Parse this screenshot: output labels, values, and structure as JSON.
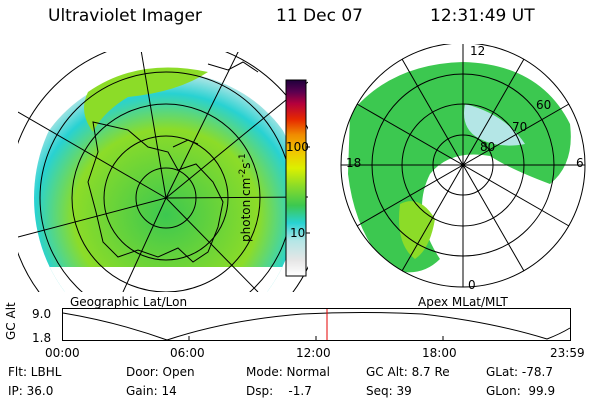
{
  "header": {
    "instrument": "Ultraviolet Imager",
    "date": "11 Dec 07",
    "time": "12:31:49 UT"
  },
  "colorbar": {
    "unit_label": "photon cm",
    "unit_exp1": "-2",
    "unit_s": "s",
    "unit_exp2": "-1",
    "ticks": [
      "100",
      "10"
    ],
    "stops": [
      "#ffffff",
      "#e6e6e6",
      "#b4e6e6",
      "#28d2d2",
      "#3cc850",
      "#8cdc28",
      "#dcf000",
      "#f0c800",
      "#f08c00",
      "#e62800",
      "#b4003c",
      "#5a0050",
      "#1e003c"
    ]
  },
  "geo_panel": {
    "caption": "Geographic Lat/Lon"
  },
  "apex_panel": {
    "caption": "Apex MLat/MLT",
    "mlt_labels": {
      "top": "12",
      "left": "18",
      "right": "6",
      "bottom": "0"
    },
    "lat_labels": [
      "60",
      "70",
      "80"
    ]
  },
  "altitude_plot": {
    "ylabel": "GC Alt",
    "ymax": "9.0",
    "ymin": "1.8",
    "time_ticks": [
      "00:00",
      "06:00",
      "12:00",
      "18:00",
      "23:59"
    ],
    "current_marker_color": "#e60000"
  },
  "status": {
    "flt": "Flt: LBHL",
    "ip": "IP: 36.0",
    "door": "Door: Open",
    "gain": "Gain: 14",
    "mode": "Mode: Normal",
    "dsp": "Dsp:    -1.7",
    "gc_alt": "GC Alt: 8.7 Re",
    "seq": "Seq: 39",
    "glat": "GLat: -78.7",
    "glon": "GLon:  99.9"
  }
}
